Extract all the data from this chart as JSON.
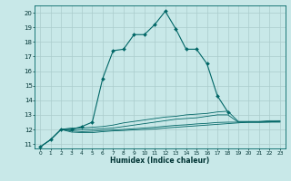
{
  "xlabel": "Humidex (Indice chaleur)",
  "xlim": [
    -0.5,
    23.5
  ],
  "ylim": [
    10.7,
    20.5
  ],
  "yticks": [
    11,
    12,
    13,
    14,
    15,
    16,
    17,
    18,
    19,
    20
  ],
  "xticks": [
    0,
    1,
    2,
    3,
    4,
    5,
    6,
    7,
    8,
    9,
    10,
    11,
    12,
    13,
    14,
    15,
    16,
    17,
    18,
    19,
    20,
    21,
    22,
    23
  ],
  "bg_color": "#c8e8e8",
  "grid_color": "#aacccc",
  "line_color": "#006666",
  "main_line": {
    "x": [
      0,
      1,
      2,
      3,
      4,
      5,
      6,
      7,
      8,
      9,
      10,
      11,
      12,
      13,
      14,
      15,
      16,
      17,
      18
    ],
    "y": [
      10.8,
      11.3,
      12.0,
      12.0,
      12.2,
      12.5,
      15.5,
      17.4,
      17.5,
      18.5,
      18.5,
      19.2,
      20.1,
      18.9,
      17.5,
      17.5,
      16.5,
      14.3,
      13.2
    ]
  },
  "flat_lines": [
    {
      "x": [
        0,
        1,
        2,
        3,
        4,
        5,
        6,
        7,
        8,
        9,
        10,
        11,
        12,
        13,
        14,
        15,
        16,
        17,
        18,
        19,
        20,
        21,
        22,
        23
      ],
      "y": [
        10.8,
        11.3,
        12.0,
        12.1,
        12.1,
        12.15,
        12.2,
        12.3,
        12.45,
        12.55,
        12.65,
        12.75,
        12.85,
        12.9,
        13.0,
        13.05,
        13.1,
        13.2,
        13.25,
        12.55,
        12.55,
        12.55,
        12.6,
        12.6
      ]
    },
    {
      "x": [
        0,
        1,
        2,
        3,
        4,
        5,
        6,
        7,
        8,
        9,
        10,
        11,
        12,
        13,
        14,
        15,
        16,
        17,
        18,
        19,
        20,
        21,
        22,
        23
      ],
      "y": [
        10.8,
        11.3,
        12.0,
        12.0,
        11.98,
        12.0,
        12.05,
        12.1,
        12.2,
        12.3,
        12.4,
        12.5,
        12.6,
        12.7,
        12.75,
        12.8,
        12.9,
        13.0,
        13.0,
        12.5,
        12.5,
        12.5,
        12.5,
        12.5
      ]
    },
    {
      "x": [
        2,
        3,
        4,
        5,
        6,
        7,
        8,
        9,
        10,
        11,
        12,
        13,
        14,
        15,
        16,
        17,
        18,
        19,
        20,
        21,
        22,
        23
      ],
      "y": [
        12.0,
        11.9,
        11.85,
        11.88,
        11.93,
        11.97,
        12.0,
        12.05,
        12.1,
        12.15,
        12.22,
        12.28,
        12.32,
        12.38,
        12.42,
        12.48,
        12.5,
        12.5,
        12.5,
        12.5,
        12.52,
        12.55
      ]
    },
    {
      "x": [
        2,
        3,
        4,
        5,
        6,
        7,
        8,
        9,
        10,
        11,
        12,
        13,
        14,
        15,
        16,
        17,
        18,
        19,
        20,
        21,
        22,
        23
      ],
      "y": [
        12.0,
        11.82,
        11.78,
        11.78,
        11.85,
        11.9,
        11.93,
        11.97,
        12.0,
        12.03,
        12.1,
        12.15,
        12.2,
        12.25,
        12.3,
        12.35,
        12.4,
        12.45,
        12.5,
        12.5,
        12.52,
        12.55
      ]
    }
  ]
}
